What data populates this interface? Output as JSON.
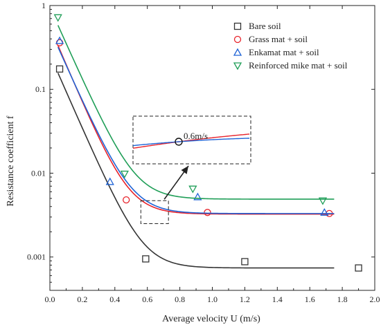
{
  "chart_data": {
    "type": "scatter",
    "xlabel": "Average velocity U (m/s)",
    "ylabel": "Resistance coefficient f",
    "xlim": [
      0,
      2.0
    ],
    "ylim": [
      0.0004,
      1
    ],
    "yscale": "log",
    "grid": false,
    "legend_position": "top-right",
    "xticks": [
      "0.0",
      "0.2",
      "0.4",
      "0.6",
      "0.8",
      "1.0",
      "1.2",
      "1.4",
      "1.6",
      "1.8",
      "2.0"
    ],
    "yticks": [
      {
        "value": 1,
        "label": "1"
      },
      {
        "value": 0.1,
        "label": "0.1"
      },
      {
        "value": 0.01,
        "label": "0.01"
      },
      {
        "value": 0.001,
        "label": "0.001"
      }
    ],
    "series": [
      {
        "name": "Bare soil",
        "marker": "square",
        "color": "#333333",
        "points": [
          [
            0.06,
            0.175
          ],
          [
            0.59,
            0.00095
          ],
          [
            1.2,
            0.00088
          ],
          [
            1.9,
            0.00074
          ]
        ],
        "fit": {
          "type": "exp-decay",
          "asymptote": 0.00074,
          "amplitude": 0.26,
          "decay": 0.098
        }
      },
      {
        "name": "Grass mat + soil",
        "marker": "circle",
        "color": "#e8222a",
        "points": [
          [
            0.06,
            0.36
          ],
          [
            0.47,
            0.0048
          ],
          [
            0.97,
            0.0034
          ],
          [
            1.72,
            0.0033
          ]
        ],
        "fit": {
          "type": "exp-decay",
          "asymptote": 0.00325,
          "amplitude": 0.56,
          "decay": 0.095
        }
      },
      {
        "name": "Enkamat mat + soil",
        "marker": "triangle-up",
        "color": "#1f63d6",
        "points": [
          [
            0.06,
            0.38
          ],
          [
            0.37,
            0.0079
          ],
          [
            0.91,
            0.0052
          ],
          [
            1.69,
            0.0034
          ]
        ],
        "fit": {
          "type": "exp-decay",
          "asymptote": 0.0033,
          "amplitude": 0.52,
          "decay": 0.1
        }
      },
      {
        "name": "Reinforced mike mat + soil",
        "marker": "triangle-down",
        "color": "#1f9e57",
        "points": [
          [
            0.05,
            0.72
          ],
          [
            0.46,
            0.0098
          ],
          [
            0.88,
            0.0065
          ],
          [
            1.68,
            0.0047
          ]
        ],
        "fit": {
          "type": "exp-decay",
          "asymptote": 0.0049,
          "amplitude": 0.95,
          "decay": 0.1
        }
      }
    ],
    "annotations": {
      "label": "0.6m/s",
      "circle_point": [
        0.6,
        0.0033
      ]
    }
  }
}
